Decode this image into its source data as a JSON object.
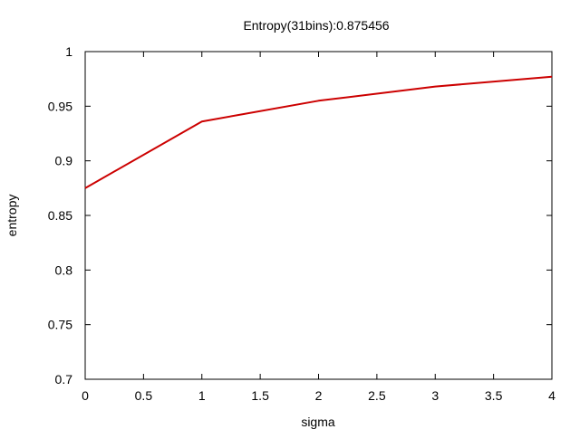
{
  "chart_data": {
    "type": "line",
    "title": "Entropy(31bins):0.875456",
    "xlabel": "sigma",
    "ylabel": "entropy",
    "xlim": [
      0,
      4
    ],
    "ylim": [
      0.7,
      1
    ],
    "x_ticks": [
      0,
      0.5,
      1,
      1.5,
      2,
      2.5,
      3,
      3.5,
      4
    ],
    "x_tick_labels": [
      "0",
      "0.5",
      "1",
      "1.5",
      "2",
      "2.5",
      "3",
      "3.5",
      "4"
    ],
    "y_ticks": [
      0.7,
      0.75,
      0.8,
      0.85,
      0.9,
      0.95,
      1
    ],
    "y_tick_labels": [
      "0.7",
      "0.75",
      "0.8",
      "0.85",
      "0.9",
      "0.95",
      "1"
    ],
    "grid": false,
    "legend": "none",
    "series": [
      {
        "color": "#cc0000",
        "x": [
          0,
          1,
          2,
          3,
          4
        ],
        "y": [
          0.875,
          0.936,
          0.955,
          0.968,
          0.977
        ]
      }
    ]
  }
}
